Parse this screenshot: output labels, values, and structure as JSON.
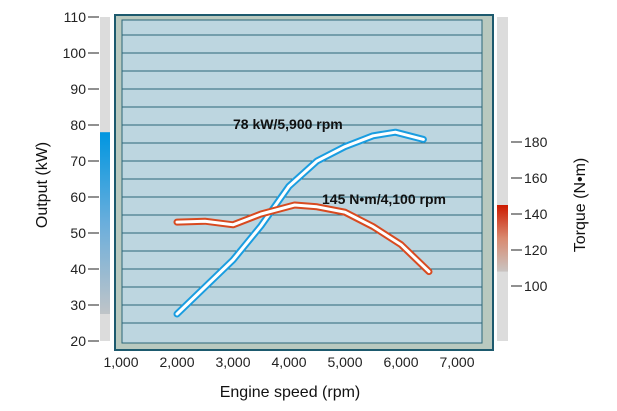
{
  "chart_data": {
    "type": "line",
    "title": "",
    "xlabel": "Engine speed (rpm)",
    "ylabel": "Output (kW)",
    "y2label": "Torque (N•m)",
    "xlim": [
      1000,
      7000
    ],
    "ylim": [
      20,
      110
    ],
    "y2lim": [
      100,
      180
    ],
    "x_ticks": [
      1000,
      2000,
      3000,
      4000,
      5000,
      6000,
      7000
    ],
    "x_tick_labels": [
      "1,000",
      "2,000",
      "3,000",
      "4,000",
      "5,000",
      "6,000",
      "7,000"
    ],
    "y_ticks": [
      20,
      30,
      40,
      50,
      60,
      70,
      80,
      90,
      100,
      110
    ],
    "y_tick_labels": [
      "20",
      "30",
      "40",
      "50",
      "60",
      "70",
      "80",
      "90",
      "100",
      "110"
    ],
    "y2_ticks": [
      100,
      120,
      140,
      160,
      180
    ],
    "y2_tick_labels": [
      "100",
      "120",
      "140",
      "160",
      "180"
    ],
    "grid": true,
    "series": [
      {
        "name": "Output",
        "axis": "left",
        "color": "#1a9de0",
        "x": [
          2000,
          2500,
          3000,
          3500,
          4000,
          4500,
          5000,
          5500,
          5900,
          6400
        ],
        "y": [
          27.5,
          35,
          42.5,
          52,
          63,
          70,
          74,
          77,
          78,
          76
        ]
      },
      {
        "name": "Torque",
        "axis": "right",
        "color": "#d84a20",
        "x": [
          2000,
          2500,
          3000,
          3500,
          4100,
          4500,
          5000,
          5500,
          6000,
          6500
        ],
        "y": [
          135.5,
          136,
          134,
          140,
          145,
          144,
          141,
          133,
          123,
          108
        ]
      }
    ],
    "annotations": [
      "78 kW/5,900 rpm",
      "145 N•m/4,100 rpm"
    ]
  }
}
